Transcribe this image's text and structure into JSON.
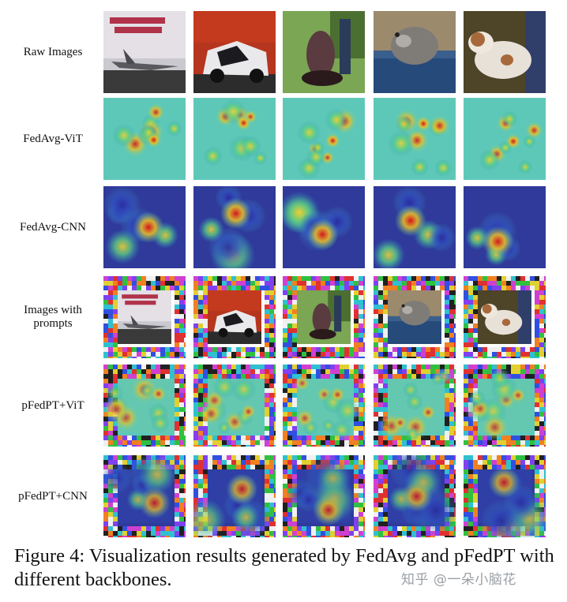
{
  "figure": {
    "rows": [
      {
        "label": "Raw Images",
        "kind": "raw"
      },
      {
        "label": "FedAvg-ViT",
        "kind": "vit"
      },
      {
        "label": "FedAvg-CNN",
        "kind": "cnn"
      },
      {
        "label": "Images with\nprompts",
        "kind": "raw-prompt"
      },
      {
        "label": "pFedPT+ViT",
        "kind": "vit-prompt"
      },
      {
        "label": "pFedPT+CNN",
        "kind": "cnn-prompt"
      }
    ],
    "columns": [
      "airplane",
      "car",
      "bird",
      "cat",
      "dog"
    ]
  },
  "caption": {
    "text": "Figure 4: Visualization results generated by FedAvg and pFedPT with different backbones."
  },
  "watermark": {
    "text": "知乎 @一朵小脑花"
  }
}
